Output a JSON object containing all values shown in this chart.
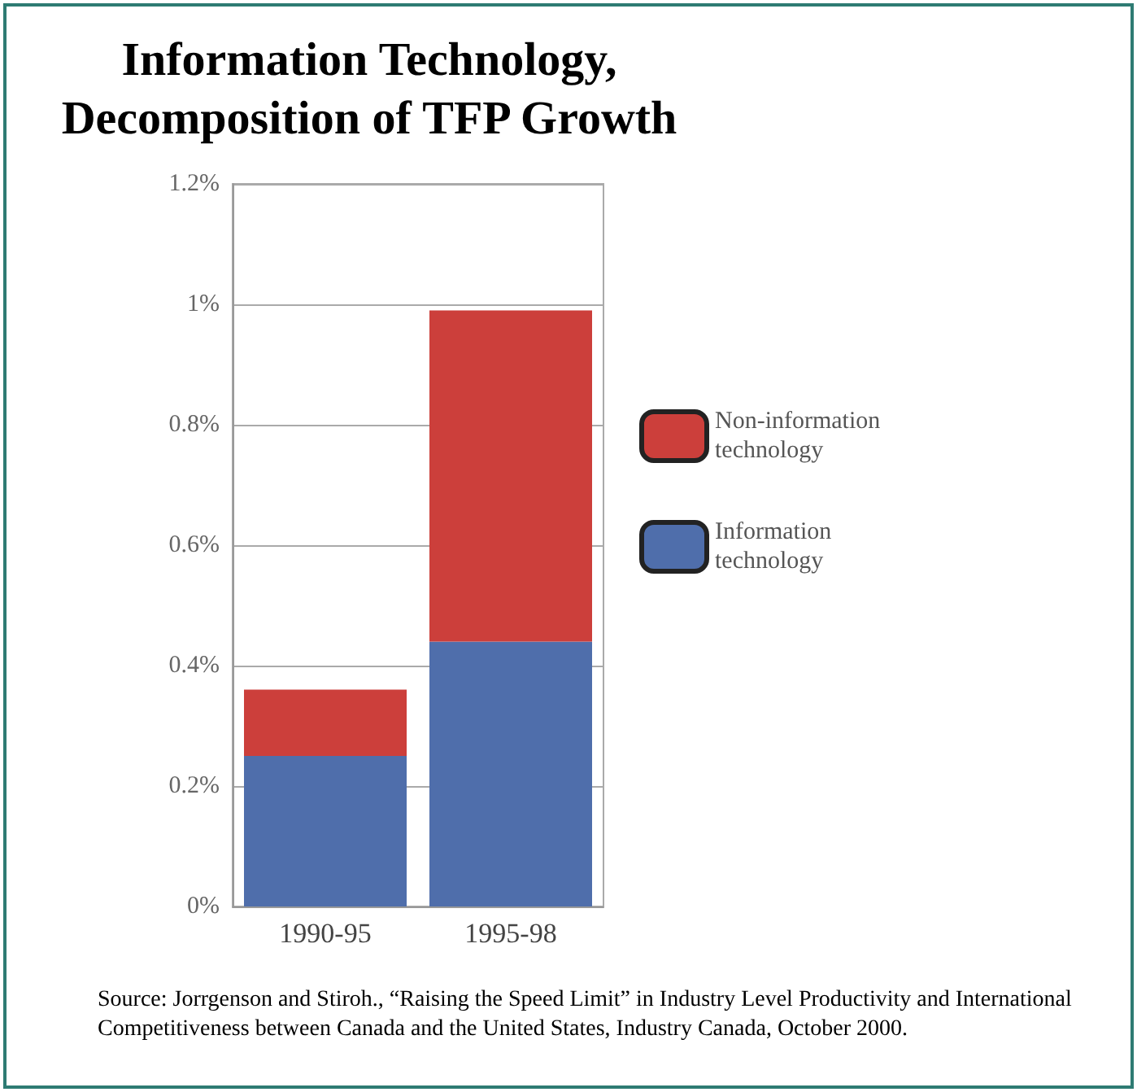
{
  "chart_data": {
    "type": "bar",
    "title": "Information Technology,\nDecomposition of TFP Growth",
    "categories": [
      "1990-95",
      "1995-98"
    ],
    "series": [
      {
        "name": "Information technology",
        "color": "#4f6eab",
        "values": [
          0.25,
          0.44
        ]
      },
      {
        "name": "Non-information technology",
        "color": "#cc3f3b",
        "values": [
          0.11,
          0.55
        ]
      }
    ],
    "stacked": true,
    "ylim": [
      0,
      1.2
    ],
    "yticks": [
      {
        "value": 0,
        "label": "0%"
      },
      {
        "value": 0.2,
        "label": "0.2%"
      },
      {
        "value": 0.4,
        "label": "0.4%"
      },
      {
        "value": 0.6,
        "label": "0.6%"
      },
      {
        "value": 0.8,
        "label": "0.8%"
      },
      {
        "value": 1,
        "label": "1%"
      },
      {
        "value": 1.2,
        "label": "1.2%"
      }
    ],
    "grid": "y",
    "legend": "right",
    "annotations": [
      "Source:  Jorrgenson and Stiroh., “Raising the Speed Limit” in Industry Level Productivity and International Competitiveness between Canada and the United States,  Industry Canada, October 2000."
    ]
  }
}
